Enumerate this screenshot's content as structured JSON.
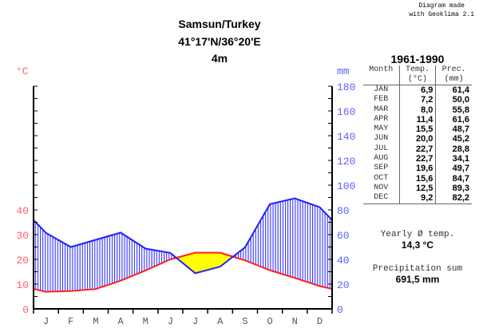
{
  "credit": [
    "Diagram made",
    "with Geoklima 2.1"
  ],
  "title": {
    "station": "Samsun/Turkey",
    "coords": "41°17'N/36°20'E",
    "elevation": "4m"
  },
  "table": {
    "period": "1961-1990",
    "headers": {
      "month": "Month",
      "temp": "Temp.",
      "temp_unit": "(°C)",
      "prec": "Prec.",
      "prec_unit": "(mm)"
    },
    "rows": [
      [
        "JAN",
        "6,9",
        "61,4"
      ],
      [
        "FEB",
        "7,2",
        "50,0"
      ],
      [
        "MAR",
        "8,0",
        "55,8"
      ],
      [
        "APR",
        "11,4",
        "61,6"
      ],
      [
        "MAY",
        "15,5",
        "48,7"
      ],
      [
        "JUN",
        "20,0",
        "45,2"
      ],
      [
        "JUL",
        "22,7",
        "28,8"
      ],
      [
        "AUG",
        "22,7",
        "34,1"
      ],
      [
        "SEP",
        "19,6",
        "49,7"
      ],
      [
        "OCT",
        "15,6",
        "84,7"
      ],
      [
        "NOV",
        "12,5",
        "89,3"
      ],
      [
        "DEC",
        "9,2",
        "82,2"
      ]
    ]
  },
  "yearly": {
    "label": "Yearly Ø temp.",
    "value": "14,3 °C"
  },
  "precsum": {
    "label": "Precipitation sum",
    "value": "691,5 mm"
  },
  "chart_data": {
    "type": "line",
    "categories": [
      "J",
      "F",
      "M",
      "A",
      "M",
      "J",
      "J",
      "A",
      "S",
      "O",
      "N",
      "D"
    ],
    "series": [
      {
        "name": "Temperature",
        "unit": "°C",
        "axis": "left",
        "color": "#ff2020",
        "values": [
          6.9,
          7.2,
          8.0,
          11.4,
          15.5,
          20.0,
          22.7,
          22.7,
          19.6,
          15.6,
          12.5,
          9.2
        ]
      },
      {
        "name": "Precipitation",
        "unit": "mm",
        "axis": "right",
        "color": "#2020ff",
        "values": [
          61.4,
          50.0,
          55.8,
          61.6,
          48.7,
          45.2,
          28.8,
          34.1,
          49.7,
          84.7,
          89.3,
          82.2
        ]
      }
    ],
    "left_axis": {
      "label": "°C",
      "ticks": [
        0,
        10,
        20,
        30,
        40
      ],
      "color": "#ff6060"
    },
    "right_axis": {
      "label": "mm",
      "ticks": [
        0,
        20,
        40,
        60,
        80,
        100,
        120,
        140,
        160,
        180
      ],
      "ylim": [
        0,
        180
      ],
      "color": "#6060ff"
    },
    "humid_fill": "#2020ff",
    "arid_fill": "#ffff00"
  }
}
